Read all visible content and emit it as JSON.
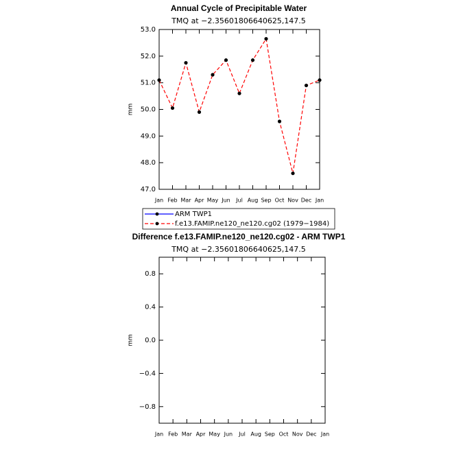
{
  "chart_data": [
    {
      "type": "line",
      "title": "Annual Cycle of Precipitable Water",
      "subtitle": "TMQ at −2.35601806640625,147.5",
      "y_label": "mm",
      "categories": [
        "Jan",
        "Feb",
        "Mar",
        "Apr",
        "May",
        "Jun",
        "Jul",
        "Aug",
        "Sep",
        "Oct",
        "Nov",
        "Dec",
        "Jan"
      ],
      "series": [
        {
          "name": "ARM  TWP1",
          "color": "#0000ff",
          "dash": false,
          "values": [
            null,
            null,
            null,
            null,
            null,
            null,
            null,
            null,
            null,
            null,
            null,
            null,
            null
          ]
        },
        {
          "name": "f.e13.FAMIP.ne120_ne120.cg02 (1979−1984)",
          "color": "#ff0000",
          "dash": true,
          "values": [
            51.1,
            50.05,
            51.75,
            49.9,
            51.3,
            51.85,
            50.6,
            51.85,
            52.65,
            49.55,
            47.6,
            50.9,
            51.1
          ]
        }
      ],
      "marker_color": "#000000",
      "ylim": [
        47.0,
        53.0
      ],
      "yticks": [
        {
          "value": 47,
          "label": "47.0"
        },
        {
          "value": 48,
          "label": "48.0"
        },
        {
          "value": 49,
          "label": "49.0"
        },
        {
          "value": 50,
          "label": "50.0"
        },
        {
          "value": 51,
          "label": "51.0"
        },
        {
          "value": 52,
          "label": "52.0"
        },
        {
          "value": 53,
          "label": "53.0"
        }
      ],
      "legend": "bottom"
    },
    {
      "type": "line",
      "title": "Difference f.e13.FAMIP.ne120_ne120.cg02 - ARM TWP1",
      "subtitle": "TMQ at −2.35601806640625,147.5",
      "y_label": "mm",
      "categories": [
        "Jan",
        "Feb",
        "Mar",
        "Apr",
        "May",
        "Jun",
        "Jul",
        "Aug",
        "Sep",
        "Oct",
        "Nov",
        "Dec",
        "Jan"
      ],
      "series": [],
      "ylim": [
        -1.0,
        1.0
      ],
      "yticks": [
        {
          "value": -0.8,
          "label": "−0.8"
        },
        {
          "value": -0.4,
          "label": "−0.4"
        },
        {
          "value": 0,
          "label": "0.0"
        },
        {
          "value": 0.4,
          "label": "0.4"
        },
        {
          "value": 0.8,
          "label": "0.8"
        }
      ]
    }
  ]
}
